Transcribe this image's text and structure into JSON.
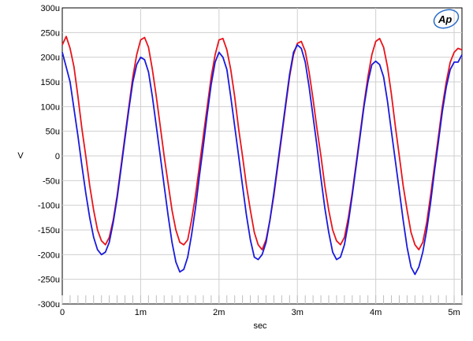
{
  "chart_data": {
    "type": "line",
    "title": "",
    "xlabel": "sec",
    "ylabel": "V",
    "xlim": [
      0,
      5.1
    ],
    "ylim": [
      -300,
      300
    ],
    "grid": true,
    "x_ticks": [
      0,
      1,
      2,
      3,
      4,
      5
    ],
    "x_tick_labels": [
      "0",
      "1m",
      "2m",
      "3m",
      "4m",
      "5m"
    ],
    "y_ticks": [
      300,
      250,
      200,
      150,
      100,
      50,
      0,
      -50,
      -100,
      -150,
      -200,
      -250,
      -300
    ],
    "y_tick_labels": [
      "300u",
      "250u",
      "200u",
      "150u",
      "100u",
      "50u",
      "0",
      "-50u",
      "-100u",
      "-150u",
      "-200u",
      "-250u",
      "-300u"
    ],
    "series": [
      {
        "color": "#e8141c",
        "x": [
          0,
          0.05,
          0.1,
          0.15,
          0.2,
          0.25,
          0.3,
          0.35,
          0.4,
          0.45,
          0.5,
          0.55,
          0.6,
          0.65,
          0.7,
          0.75,
          0.8,
          0.85,
          0.9,
          0.95,
          1.0,
          1.05,
          1.1,
          1.15,
          1.2,
          1.25,
          1.3,
          1.35,
          1.4,
          1.45,
          1.5,
          1.55,
          1.6,
          1.65,
          1.7,
          1.75,
          1.8,
          1.85,
          1.9,
          1.95,
          2.0,
          2.05,
          2.1,
          2.15,
          2.2,
          2.25,
          2.3,
          2.35,
          2.4,
          2.45,
          2.5,
          2.55,
          2.6,
          2.65,
          2.7,
          2.75,
          2.8,
          2.85,
          2.9,
          2.95,
          3.0,
          3.05,
          3.1,
          3.15,
          3.2,
          3.25,
          3.3,
          3.35,
          3.4,
          3.45,
          3.5,
          3.55,
          3.6,
          3.65,
          3.7,
          3.75,
          3.8,
          3.85,
          3.9,
          3.95,
          4.0,
          4.05,
          4.1,
          4.15,
          4.2,
          4.25,
          4.3,
          4.35,
          4.4,
          4.45,
          4.5,
          4.55,
          4.6,
          4.65,
          4.7,
          4.75,
          4.8,
          4.85,
          4.9,
          4.95,
          5.0,
          5.05,
          5.1
        ],
        "values": [
          225,
          242,
          218,
          180,
          120,
          55,
          0,
          -60,
          -110,
          -150,
          -172,
          -180,
          -165,
          -130,
          -80,
          -20,
          40,
          100,
          160,
          205,
          235,
          240,
          220,
          175,
          120,
          60,
          0,
          -55,
          -110,
          -150,
          -175,
          -180,
          -170,
          -130,
          -80,
          -20,
          40,
          100,
          160,
          205,
          235,
          238,
          215,
          175,
          120,
          55,
          0,
          -60,
          -110,
          -155,
          -180,
          -190,
          -170,
          -130,
          -80,
          -20,
          40,
          100,
          160,
          205,
          228,
          232,
          212,
          170,
          115,
          55,
          0,
          -60,
          -110,
          -150,
          -172,
          -180,
          -165,
          -125,
          -75,
          -15,
          45,
          105,
          160,
          205,
          232,
          238,
          220,
          180,
          125,
          60,
          0,
          -60,
          -110,
          -155,
          -180,
          -190,
          -175,
          -135,
          -80,
          -20,
          40,
          100,
          150,
          190,
          210,
          218,
          215
        ]
      },
      {
        "color": "#1a1adc",
        "x": [
          0,
          0.05,
          0.1,
          0.15,
          0.2,
          0.25,
          0.3,
          0.35,
          0.4,
          0.45,
          0.5,
          0.55,
          0.6,
          0.65,
          0.7,
          0.75,
          0.8,
          0.85,
          0.9,
          0.95,
          1.0,
          1.05,
          1.1,
          1.15,
          1.2,
          1.25,
          1.3,
          1.35,
          1.4,
          1.45,
          1.5,
          1.55,
          1.6,
          1.65,
          1.7,
          1.75,
          1.8,
          1.85,
          1.9,
          1.95,
          2.0,
          2.05,
          2.1,
          2.15,
          2.2,
          2.25,
          2.3,
          2.35,
          2.4,
          2.45,
          2.5,
          2.55,
          2.6,
          2.65,
          2.7,
          2.75,
          2.8,
          2.85,
          2.9,
          2.95,
          3.0,
          3.05,
          3.1,
          3.15,
          3.2,
          3.25,
          3.3,
          3.35,
          3.4,
          3.45,
          3.5,
          3.55,
          3.6,
          3.65,
          3.7,
          3.75,
          3.8,
          3.85,
          3.9,
          3.95,
          4.0,
          4.05,
          4.1,
          4.15,
          4.2,
          4.25,
          4.3,
          4.35,
          4.4,
          4.45,
          4.5,
          4.55,
          4.6,
          4.65,
          4.7,
          4.75,
          4.8,
          4.85,
          4.9,
          4.95,
          5.0,
          5.05,
          5.1
        ],
        "values": [
          210,
          180,
          150,
          95,
          40,
          -20,
          -75,
          -125,
          -165,
          -190,
          -200,
          -195,
          -175,
          -135,
          -85,
          -25,
          35,
          95,
          150,
          185,
          200,
          195,
          170,
          120,
          60,
          0,
          -60,
          -120,
          -175,
          -215,
          -235,
          -230,
          -205,
          -160,
          -105,
          -40,
          20,
          85,
          145,
          190,
          210,
          200,
          175,
          120,
          60,
          0,
          -60,
          -120,
          -170,
          -205,
          -210,
          -200,
          -175,
          -130,
          -75,
          -15,
          45,
          105,
          165,
          210,
          225,
          218,
          190,
          140,
          80,
          20,
          -45,
          -105,
          -155,
          -195,
          -210,
          -205,
          -180,
          -135,
          -80,
          -20,
          40,
          100,
          150,
          185,
          192,
          185,
          160,
          110,
          50,
          -10,
          -70,
          -130,
          -185,
          -225,
          -240,
          -225,
          -195,
          -150,
          -95,
          -30,
          30,
          90,
          140,
          175,
          190,
          190,
          205
        ]
      }
    ]
  },
  "logo": {
    "text": "Ap",
    "color": "#2a6cc8"
  }
}
